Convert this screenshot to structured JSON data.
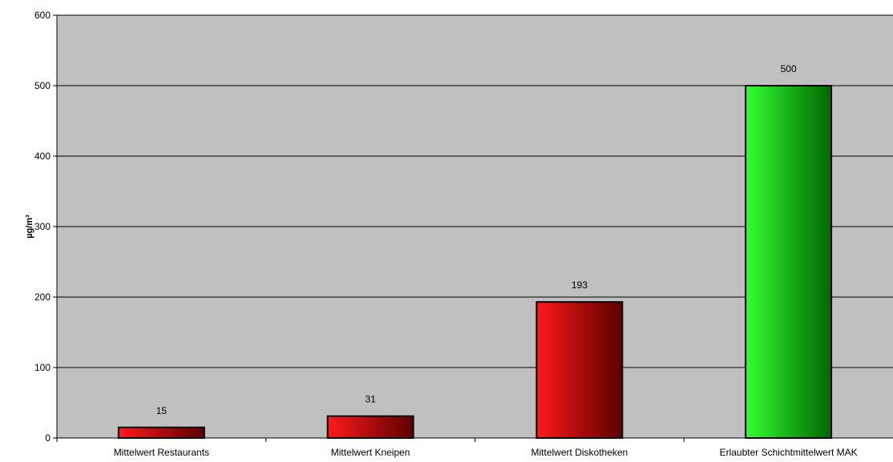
{
  "chart_data": {
    "type": "bar",
    "title": "",
    "xlabel": "",
    "ylabel": "µg/m³",
    "ylim": [
      0,
      600
    ],
    "yticks": [
      0,
      100,
      200,
      300,
      400,
      500,
      600
    ],
    "grid": true,
    "legend": "none",
    "categories": [
      "Mittelwert Restaurants",
      "Mittelwert Kneipen",
      "Mittelwert Diskotheken",
      "Erlaubter Schichtmittelwert MAK"
    ],
    "values": [
      15,
      31,
      193,
      500
    ],
    "data_labels": [
      "15",
      "31",
      "193",
      "500"
    ],
    "bar_colors": [
      "red",
      "red",
      "red",
      "green"
    ]
  },
  "colors": {
    "plot_background": "#c0c0c0",
    "red_light": "#ff1a1a",
    "red_dark": "#5c0000",
    "green_light": "#33ff33",
    "green_dark": "#006600",
    "gridline": "#000000"
  }
}
